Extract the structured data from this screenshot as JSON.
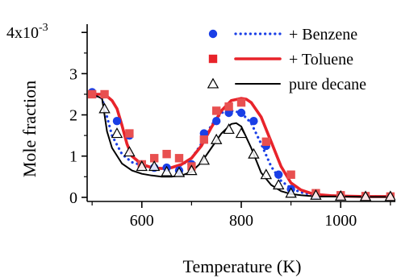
{
  "chart_data": {
    "type": "line",
    "xlabel": "Temperature (K)",
    "ylabel": "Mole fraction",
    "xlim": [
      490,
      1110
    ],
    "ylim": [
      -0.1,
      4.2
    ],
    "y_exponent_label": "x10",
    "y_exponent_power": "-3",
    "x_ticks": [
      600,
      800,
      1000
    ],
    "x_tick_labels": [
      "600",
      "800",
      "1000"
    ],
    "x_minor_ticks": [
      500,
      700,
      900,
      1100
    ],
    "y_ticks": [
      0,
      1,
      2,
      3,
      4
    ],
    "y_tick_labels": [
      "0",
      "1",
      "2",
      "3",
      "4"
    ],
    "grid": false,
    "legend_position": "top-right",
    "colors": {
      "benzene": "#1a3fe6",
      "toluene": "#e8232a",
      "decane": "#000000",
      "axis": "#000000"
    },
    "series": [
      {
        "name": "+ Benzene",
        "kind": "model",
        "line_style": "dotted",
        "color": "#1a3fe6",
        "x": [
          500,
          520,
          540,
          560,
          580,
          600,
          620,
          640,
          660,
          680,
          700,
          720,
          740,
          760,
          780,
          800,
          820,
          840,
          860,
          880,
          900,
          920,
          940,
          960,
          980,
          1000,
          1050,
          1100
        ],
        "y": [
          2.5,
          2.4,
          1.5,
          1.05,
          0.85,
          0.78,
          0.72,
          0.7,
          0.72,
          0.78,
          0.95,
          1.3,
          1.75,
          2.05,
          2.1,
          2.05,
          1.8,
          1.3,
          0.75,
          0.4,
          0.22,
          0.12,
          0.07,
          0.05,
          0.04,
          0.03,
          0.02,
          0.02
        ]
      },
      {
        "name": "+ Toluene",
        "kind": "model",
        "line_style": "solid",
        "color": "#e8232a",
        "x": [
          500,
          520,
          530,
          540,
          550,
          560,
          570,
          580,
          600,
          620,
          640,
          660,
          680,
          700,
          720,
          740,
          760,
          780,
          800,
          810,
          820,
          840,
          860,
          880,
          900,
          920,
          940,
          960,
          980,
          1000,
          1050,
          1100
        ],
        "y": [
          2.5,
          2.5,
          2.45,
          2.35,
          2.15,
          1.75,
          1.3,
          1.0,
          0.8,
          0.72,
          0.7,
          0.72,
          0.8,
          0.95,
          1.25,
          1.7,
          2.1,
          2.35,
          2.4,
          2.38,
          2.3,
          1.95,
          1.35,
          0.75,
          0.35,
          0.18,
          0.1,
          0.06,
          0.04,
          0.03,
          0.02,
          0.02
        ]
      },
      {
        "name": "pure decane",
        "kind": "model",
        "line_style": "solid",
        "color": "#000000",
        "x": [
          500,
          520,
          530,
          540,
          560,
          580,
          600,
          620,
          640,
          660,
          680,
          700,
          720,
          740,
          760,
          780,
          790,
          800,
          820,
          840,
          860,
          880,
          900,
          920,
          940,
          960,
          1000,
          1050,
          1100
        ],
        "y": [
          2.5,
          2.4,
          1.6,
          1.2,
          0.82,
          0.65,
          0.57,
          0.53,
          0.5,
          0.5,
          0.53,
          0.62,
          0.85,
          1.2,
          1.55,
          1.78,
          1.8,
          1.72,
          1.2,
          0.6,
          0.3,
          0.15,
          0.08,
          0.05,
          0.03,
          0.02,
          0.02,
          0.01,
          0.01
        ]
      },
      {
        "name": "+ Benzene",
        "kind": "experiment",
        "marker": "circle",
        "color": "#1a3fe6",
        "x": [
          500,
          550,
          575,
          600,
          625,
          650,
          675,
          700,
          725,
          750,
          775,
          800,
          825,
          850,
          875,
          900,
          950,
          1000,
          1050,
          1100
        ],
        "y": [
          2.55,
          1.85,
          1.5,
          0.8,
          0.72,
          0.72,
          0.65,
          0.8,
          1.55,
          1.85,
          2.05,
          2.05,
          1.85,
          1.25,
          0.55,
          0.2,
          0.05,
          0.03,
          0.02,
          0.02
        ]
      },
      {
        "name": "+ Toluene",
        "kind": "experiment",
        "marker": "square",
        "color": "#e85050",
        "x": [
          500,
          525,
          575,
          600,
          625,
          650,
          675,
          700,
          725,
          750,
          775,
          800,
          850,
          900,
          950,
          1000,
          1050,
          1100
        ],
        "y": [
          2.5,
          2.5,
          1.55,
          0.8,
          0.95,
          1.05,
          0.95,
          0.75,
          1.4,
          2.1,
          2.2,
          2.3,
          1.35,
          0.55,
          0.1,
          0.05,
          0.03,
          0.02
        ]
      },
      {
        "name": "pure decane",
        "kind": "experiment",
        "marker": "open-triangle",
        "color": "#000000",
        "x": [
          525,
          550,
          575,
          600,
          625,
          650,
          675,
          700,
          725,
          750,
          775,
          800,
          825,
          850,
          875,
          900,
          950,
          1000,
          1050,
          1100
        ],
        "y": [
          2.15,
          1.55,
          1.1,
          0.75,
          0.75,
          0.62,
          0.6,
          0.65,
          0.9,
          1.4,
          1.65,
          1.55,
          1.05,
          0.55,
          0.3,
          0.1,
          0.05,
          0.03,
          0.02,
          0.02
        ]
      }
    ],
    "legend": [
      {
        "label": "+ Benzene",
        "marker": "circle",
        "line_style": "dotted",
        "color": "#1a3fe6"
      },
      {
        "label": "+ Toluene",
        "marker": "square",
        "line_style": "solid",
        "color": "#e8232a"
      },
      {
        "label": "pure decane",
        "marker": "open-triangle",
        "line_style": "solid",
        "color": "#000000"
      }
    ]
  }
}
